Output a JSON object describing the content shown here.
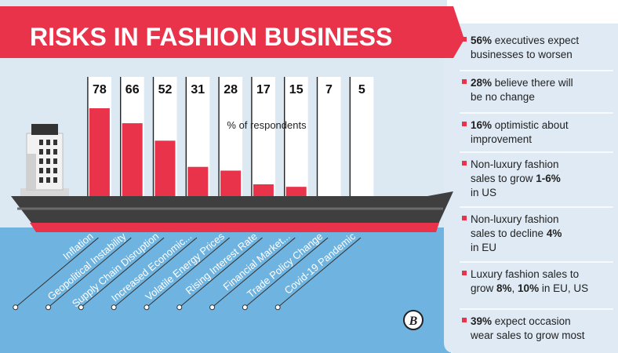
{
  "title": "RISKS IN FASHION BUSINESS",
  "colors": {
    "title_band": "#e8334a",
    "bar": "#e8334a",
    "sky": "#dce9f3",
    "sea": "#6fb4e0",
    "hull": "#4a4a4a",
    "panel": "#dfeaf4",
    "bullet": "#e8334a"
  },
  "chart_data": {
    "type": "bar",
    "unit_label": "% of respondents",
    "categories": [
      "Inflation",
      "Geopolitical Instability",
      "Supply Chain Disruption",
      "Increased Economic...",
      "Volatile Energy Prices",
      "Rising Interest Rate",
      "Financial Market...",
      "Trade Policy Change",
      "Covid-19 Pandemic"
    ],
    "values": [
      78,
      66,
      52,
      31,
      28,
      17,
      15,
      7,
      5
    ],
    "ylim": [
      0,
      100
    ]
  },
  "facts": [
    {
      "bold": "56%",
      "rest": " executives expect",
      "line2": "businesses to worsen"
    },
    {
      "bold": "28%",
      "rest": " believe there will",
      "line2": "be no change"
    },
    {
      "bold": "16%",
      "rest": " optimistic about",
      "line2": "improvement"
    },
    {
      "line1": "Non-luxury fashion",
      "pre2": "sales to grow ",
      "bold2": "1-6%",
      "line3": "in US"
    },
    {
      "line1": "Non-luxury fashion",
      "pre2": "sales to decline ",
      "bold2": "4%",
      "line3": "in EU"
    },
    {
      "line1": "Luxury fashion sales to",
      "pre2": "grow ",
      "bold2": "8%",
      "mid2": ", ",
      "bold3": "10%",
      "post2": " in EU, US"
    },
    {
      "bold": "39%",
      "rest": " expect occasion",
      "line2": "wear sales to grow most"
    }
  ],
  "logo_mark": "B"
}
